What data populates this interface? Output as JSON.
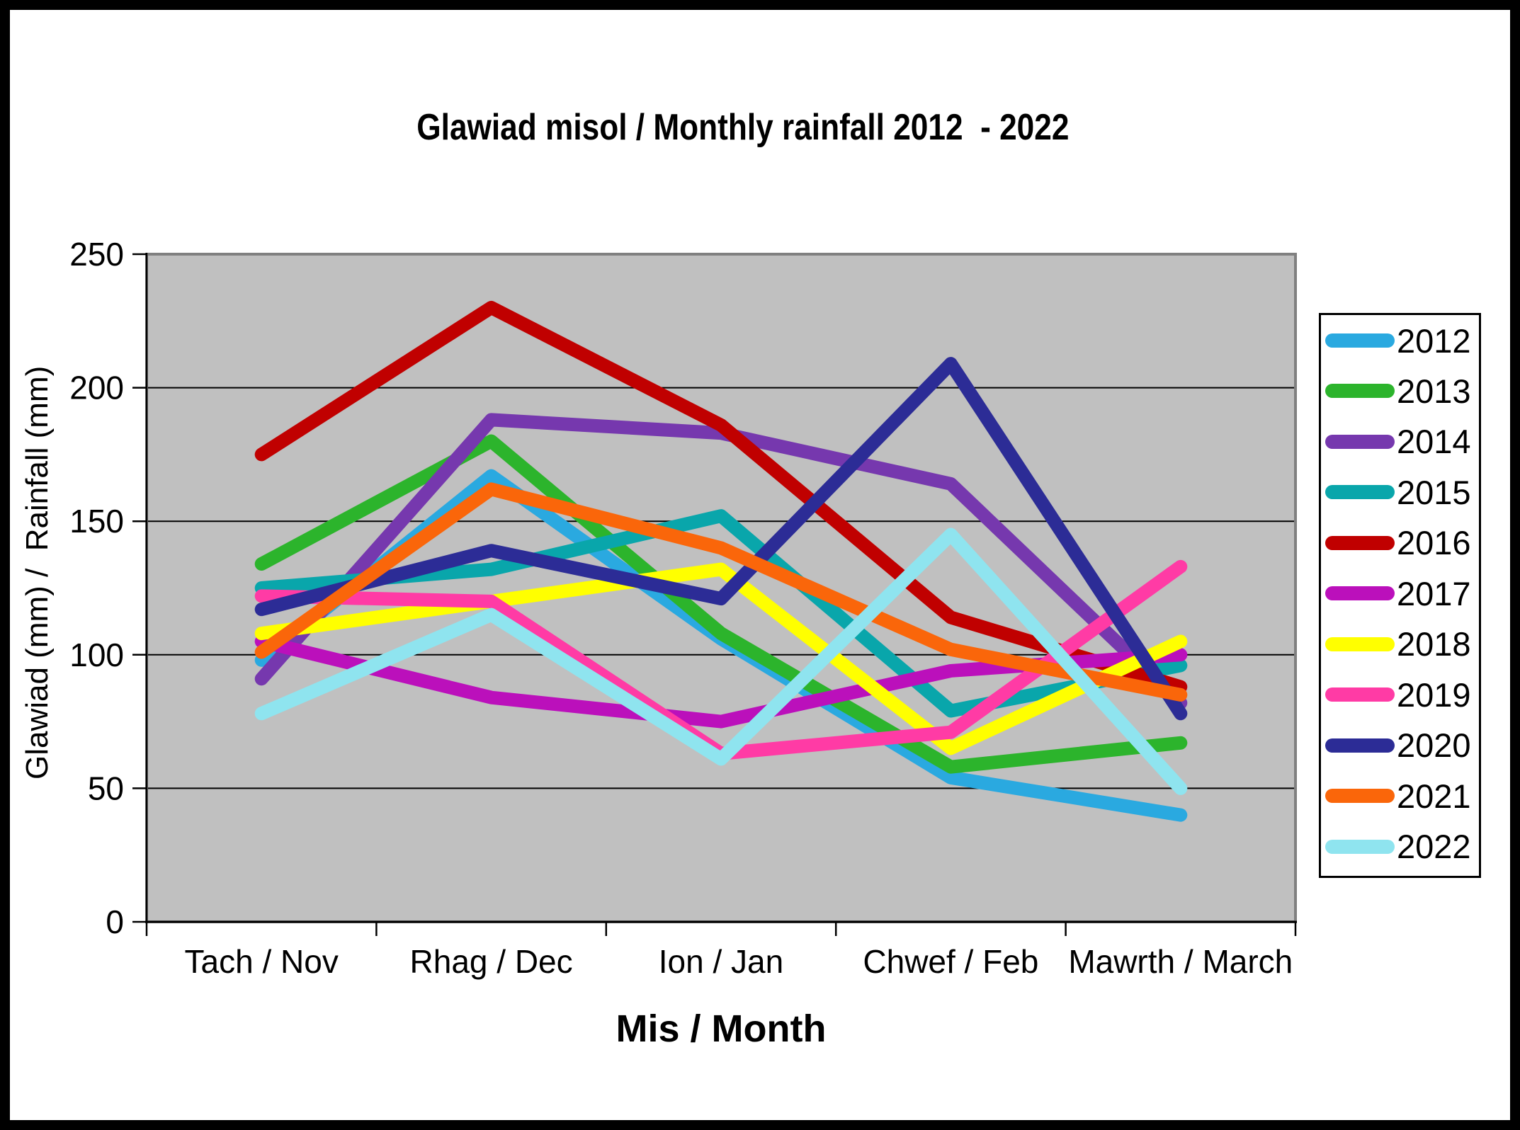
{
  "chart_data": {
    "type": "line",
    "title": "Glawiad misol / Monthly rainfall 2012  - 2022",
    "xlabel": "Mis / Month",
    "ylabel": "Glawiad (mm) /  Rainfall (mm)",
    "categories": [
      "Tach / Nov",
      "Rhag / Dec",
      "Ion / Jan",
      "Chwef / Feb",
      "Mawrth / March"
    ],
    "yticks": [
      "0",
      "50",
      "100",
      "150",
      "200",
      "250"
    ],
    "ylim": [
      0,
      250
    ],
    "ytick_step": 50,
    "grid": true,
    "legend_position": "right",
    "plot_bg_color": "#C0C0C0",
    "plot_border_color": "#808080",
    "gridline_color": "#000000",
    "series": [
      {
        "name": "2012",
        "color": "#2AA9E0",
        "values": [
          98,
          167,
          106,
          54,
          40
        ]
      },
      {
        "name": "2013",
        "color": "#2CB42C",
        "values": [
          134,
          180,
          108,
          58,
          67
        ]
      },
      {
        "name": "2014",
        "color": "#7638AE",
        "values": [
          91,
          188,
          183,
          164,
          82
        ]
      },
      {
        "name": "2015",
        "color": "#09A6AB",
        "values": [
          125,
          132,
          152,
          79,
          96
        ]
      },
      {
        "name": "2016",
        "color": "#C00000",
        "values": [
          175,
          230,
          186,
          114,
          88
        ]
      },
      {
        "name": "2017",
        "color": "#BB10BB",
        "values": [
          105,
          84,
          75,
          94,
          100
        ]
      },
      {
        "name": "2018",
        "color": "#FFFF00",
        "values": [
          108,
          120,
          132,
          65,
          105
        ]
      },
      {
        "name": "2019",
        "color": "#FF3BA5",
        "values": [
          122,
          120,
          63,
          71,
          133
        ]
      },
      {
        "name": "2020",
        "color": "#2C2C96",
        "values": [
          117,
          139,
          121,
          209,
          78
        ]
      },
      {
        "name": "2021",
        "color": "#FA660A",
        "values": [
          101,
          162,
          140,
          102,
          85
        ]
      },
      {
        "name": "2022",
        "color": "#8FE4EF",
        "values": [
          78,
          115,
          61,
          145,
          50
        ]
      }
    ]
  }
}
